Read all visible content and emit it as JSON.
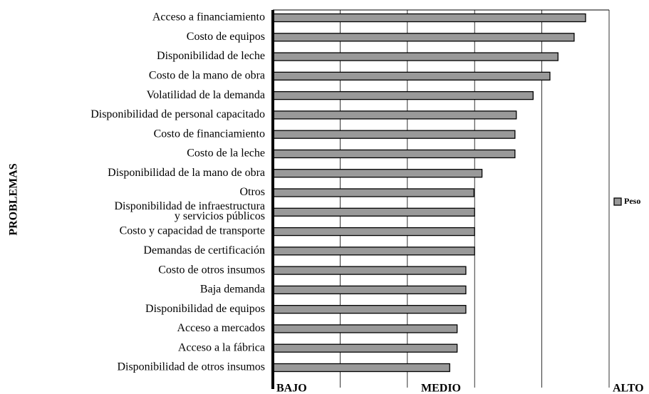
{
  "chart_data": {
    "type": "hbar",
    "ylabel": "PROBLEMAS",
    "categories": [
      "Acceso a financiamiento",
      "Costo de equipos",
      "Disponibilidad de leche",
      "Costo de la mano de obra",
      "Volatilidad de la demanda",
      "Disponibilidad de personal capacitado",
      "Costo de financiamiento",
      "Costo de la leche",
      "Disponibilidad de la mano de obra",
      "Otros",
      "Disponibilidad de infraestructura\ny servicios públicos",
      "Costo y capacidad de transporte",
      "Demandas de certificación",
      "Costo de otros insumos",
      "Baja demanda",
      "Disponibilidad de equipos",
      "Acceso a mercados",
      "Acceso a la fábrica",
      "Disponibilidad de otros insumos"
    ],
    "series": [
      {
        "name": "Peso",
        "color": "#999999",
        "values": [
          4.65,
          4.48,
          4.24,
          4.12,
          3.87,
          3.62,
          3.6,
          3.6,
          3.11,
          2.99,
          3.0,
          3.0,
          3.0,
          2.87,
          2.87,
          2.87,
          2.74,
          2.74,
          2.63
        ]
      }
    ],
    "xlim": [
      0,
      5
    ],
    "xticks": [
      {
        "value": 0,
        "label": "BAJO"
      },
      {
        "value": 2.5,
        "label": "MEDIO"
      },
      {
        "value": 5,
        "label": "ALTO"
      }
    ],
    "xgrid": [
      1,
      2,
      3,
      4,
      5
    ],
    "legend": "right"
  }
}
